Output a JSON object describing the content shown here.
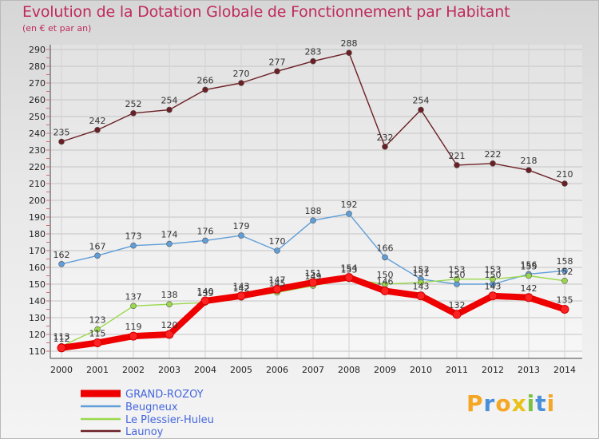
{
  "title": "Evolution de la Dotation Globale de Fonctionnement par Habitant",
  "subtitle": "(en € et par an)",
  "logo": "Proxiti",
  "chart_data": {
    "type": "line",
    "title": "Evolution de la Dotation Globale de Fonctionnement par Habitant",
    "subtitle": "(en € et par an)",
    "x": [
      2000,
      2001,
      2002,
      2003,
      2004,
      2005,
      2006,
      2007,
      2008,
      2009,
      2010,
      2011,
      2012,
      2013,
      2014
    ],
    "ylim": [
      110,
      290
    ],
    "yticks": [
      110,
      120,
      130,
      140,
      150,
      160,
      170,
      180,
      190,
      200,
      210,
      220,
      230,
      240,
      250,
      260,
      270,
      280,
      290
    ],
    "grid": true,
    "legend_position": "bottom-left",
    "series": [
      {
        "name": "GRAND-ROZOY",
        "color": "#ee0000",
        "values": [
          112,
          115,
          119,
          120,
          140,
          143,
          147,
          151,
          154,
          146,
          143,
          132,
          143,
          142,
          135
        ]
      },
      {
        "name": "Beugneux",
        "color": "#5f9ed8",
        "values": [
          162,
          167,
          173,
          174,
          176,
          179,
          170,
          188,
          192,
          166,
          153,
          150,
          150,
          156,
          158
        ]
      },
      {
        "name": "Le Plessier-Huleu",
        "color": "#99d84a",
        "values": [
          113,
          123,
          137,
          138,
          139,
          142,
          145,
          149,
          153,
          150,
          151,
          153,
          153,
          155,
          152
        ]
      },
      {
        "name": "Launoy",
        "color": "#6b1f24",
        "values": [
          235,
          242,
          252,
          254,
          266,
          270,
          277,
          283,
          288,
          232,
          254,
          221,
          222,
          218,
          210
        ]
      }
    ]
  }
}
